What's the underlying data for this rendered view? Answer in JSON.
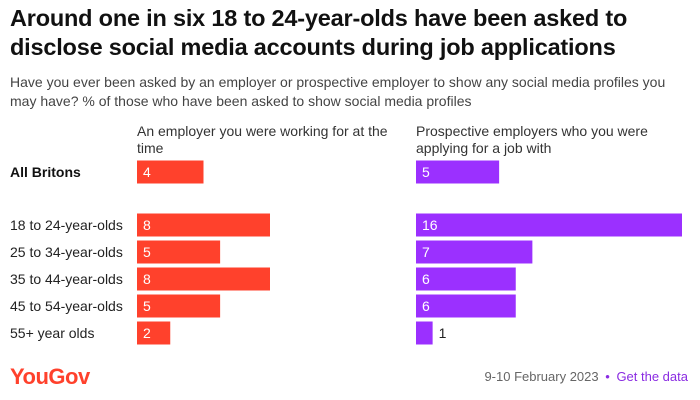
{
  "title": "Around one in six 18 to 24-year-olds have been asked to disclose social media accounts during job applications",
  "subtitle": "Have you ever been asked by an employer or prospective employer to show any social media profiles you may have? % of those who have been asked to show social media profiles",
  "footer": {
    "logo": "YouGov",
    "date": "9-10 February 2023",
    "separator": "•",
    "link": "Get the data"
  },
  "colors": {
    "current_employer": "#ff412c",
    "prospective_employer": "#9b30ff"
  },
  "chart_data": {
    "type": "bar",
    "orientation": "horizontal",
    "title": "Around one in six 18 to 24-year-olds have been asked to disclose social media accounts during job applications",
    "categories": [
      "All Britons",
      "18 to 24-year-olds",
      "25 to 34-year-olds",
      "35 to 44-year-olds",
      "45 to 54-year-olds",
      "55+ year olds"
    ],
    "series": [
      {
        "name": "An employer you were working for at the time",
        "values": [
          4,
          8,
          5,
          8,
          5,
          2
        ]
      },
      {
        "name": "Prospective employers who you were applying for a job with",
        "values": [
          5,
          16,
          7,
          6,
          6,
          1
        ]
      }
    ],
    "xlim": [
      0,
      16
    ],
    "grid": false,
    "legend": "panel headers"
  }
}
